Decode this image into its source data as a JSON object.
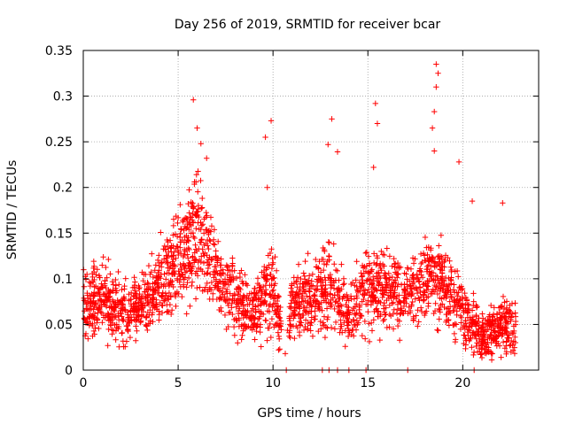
{
  "chart_data": {
    "type": "scatter",
    "title": "Day 256 of 2019, SRMTID for receiver bcar",
    "xlabel": "GPS time / hours",
    "ylabel": "SRMTID / TECUs",
    "xlim": [
      0,
      24
    ],
    "ylim": [
      0,
      0.35
    ],
    "x_ticks": [
      0,
      5,
      10,
      15,
      20
    ],
    "x_tick_labels": [
      "0",
      "5",
      "10",
      "15",
      "20"
    ],
    "y_ticks": [
      0,
      0.05,
      0.1,
      0.15,
      0.2,
      0.25,
      0.3,
      0.35
    ],
    "y_tick_labels": [
      "0",
      "0.05",
      "0.1",
      "0.15",
      "0.2",
      "0.25",
      "0.3",
      "0.35"
    ],
    "grid": true,
    "legend": "none",
    "marker": "plus",
    "color": "#ff0000",
    "zero_points_x": [
      10.7,
      12.6,
      12.95,
      13.4,
      14.0,
      14.9,
      17.1,
      20.6
    ],
    "peaks": [
      {
        "x": 5.8,
        "y": 0.296
      },
      {
        "x": 6.0,
        "y": 0.265
      },
      {
        "x": 6.2,
        "y": 0.248
      },
      {
        "x": 6.5,
        "y": 0.232
      },
      {
        "x": 9.6,
        "y": 0.255
      },
      {
        "x": 9.9,
        "y": 0.273
      },
      {
        "x": 9.7,
        "y": 0.2
      },
      {
        "x": 12.9,
        "y": 0.247
      },
      {
        "x": 13.1,
        "y": 0.275
      },
      {
        "x": 13.4,
        "y": 0.239
      },
      {
        "x": 15.4,
        "y": 0.292
      },
      {
        "x": 15.5,
        "y": 0.27
      },
      {
        "x": 15.3,
        "y": 0.222
      },
      {
        "x": 18.6,
        "y": 0.335
      },
      {
        "x": 18.7,
        "y": 0.325
      },
      {
        "x": 18.6,
        "y": 0.31
      },
      {
        "x": 18.5,
        "y": 0.283
      },
      {
        "x": 18.4,
        "y": 0.265
      },
      {
        "x": 18.5,
        "y": 0.24
      },
      {
        "x": 19.8,
        "y": 0.228
      },
      {
        "x": 20.5,
        "y": 0.185
      },
      {
        "x": 22.1,
        "y": 0.183
      }
    ],
    "profile": [
      {
        "x": 0.0,
        "lo": 0.02,
        "hi": 0.13
      },
      {
        "x": 1.0,
        "lo": 0.02,
        "hi": 0.13
      },
      {
        "x": 2.0,
        "lo": 0.01,
        "hi": 0.12
      },
      {
        "x": 3.0,
        "lo": 0.02,
        "hi": 0.12
      },
      {
        "x": 4.0,
        "lo": 0.03,
        "hi": 0.16
      },
      {
        "x": 5.0,
        "lo": 0.04,
        "hi": 0.2
      },
      {
        "x": 6.0,
        "lo": 0.05,
        "hi": 0.24
      },
      {
        "x": 7.0,
        "lo": 0.05,
        "hi": 0.16
      },
      {
        "x": 8.0,
        "lo": 0.02,
        "hi": 0.13
      },
      {
        "x": 9.0,
        "lo": 0.02,
        "hi": 0.11
      },
      {
        "x": 10.0,
        "lo": 0.02,
        "hi": 0.16
      },
      {
        "x": 10.6,
        "lo": 0.0,
        "hi": 0.05
      },
      {
        "x": 11.0,
        "lo": 0.01,
        "hi": 0.12
      },
      {
        "x": 12.0,
        "lo": 0.02,
        "hi": 0.14
      },
      {
        "x": 13.0,
        "lo": 0.02,
        "hi": 0.16
      },
      {
        "x": 14.0,
        "lo": 0.01,
        "hi": 0.11
      },
      {
        "x": 15.0,
        "lo": 0.02,
        "hi": 0.17
      },
      {
        "x": 16.0,
        "lo": 0.03,
        "hi": 0.14
      },
      {
        "x": 17.0,
        "lo": 0.03,
        "hi": 0.13
      },
      {
        "x": 18.0,
        "lo": 0.04,
        "hi": 0.16
      },
      {
        "x": 19.0,
        "lo": 0.03,
        "hi": 0.16
      },
      {
        "x": 20.0,
        "lo": 0.01,
        "hi": 0.12
      },
      {
        "x": 21.0,
        "lo": 0.0,
        "hi": 0.07
      },
      {
        "x": 22.0,
        "lo": 0.0,
        "hi": 0.1
      },
      {
        "x": 22.8,
        "lo": 0.0,
        "hi": 0.09
      }
    ],
    "points_per_hour": 110
  }
}
